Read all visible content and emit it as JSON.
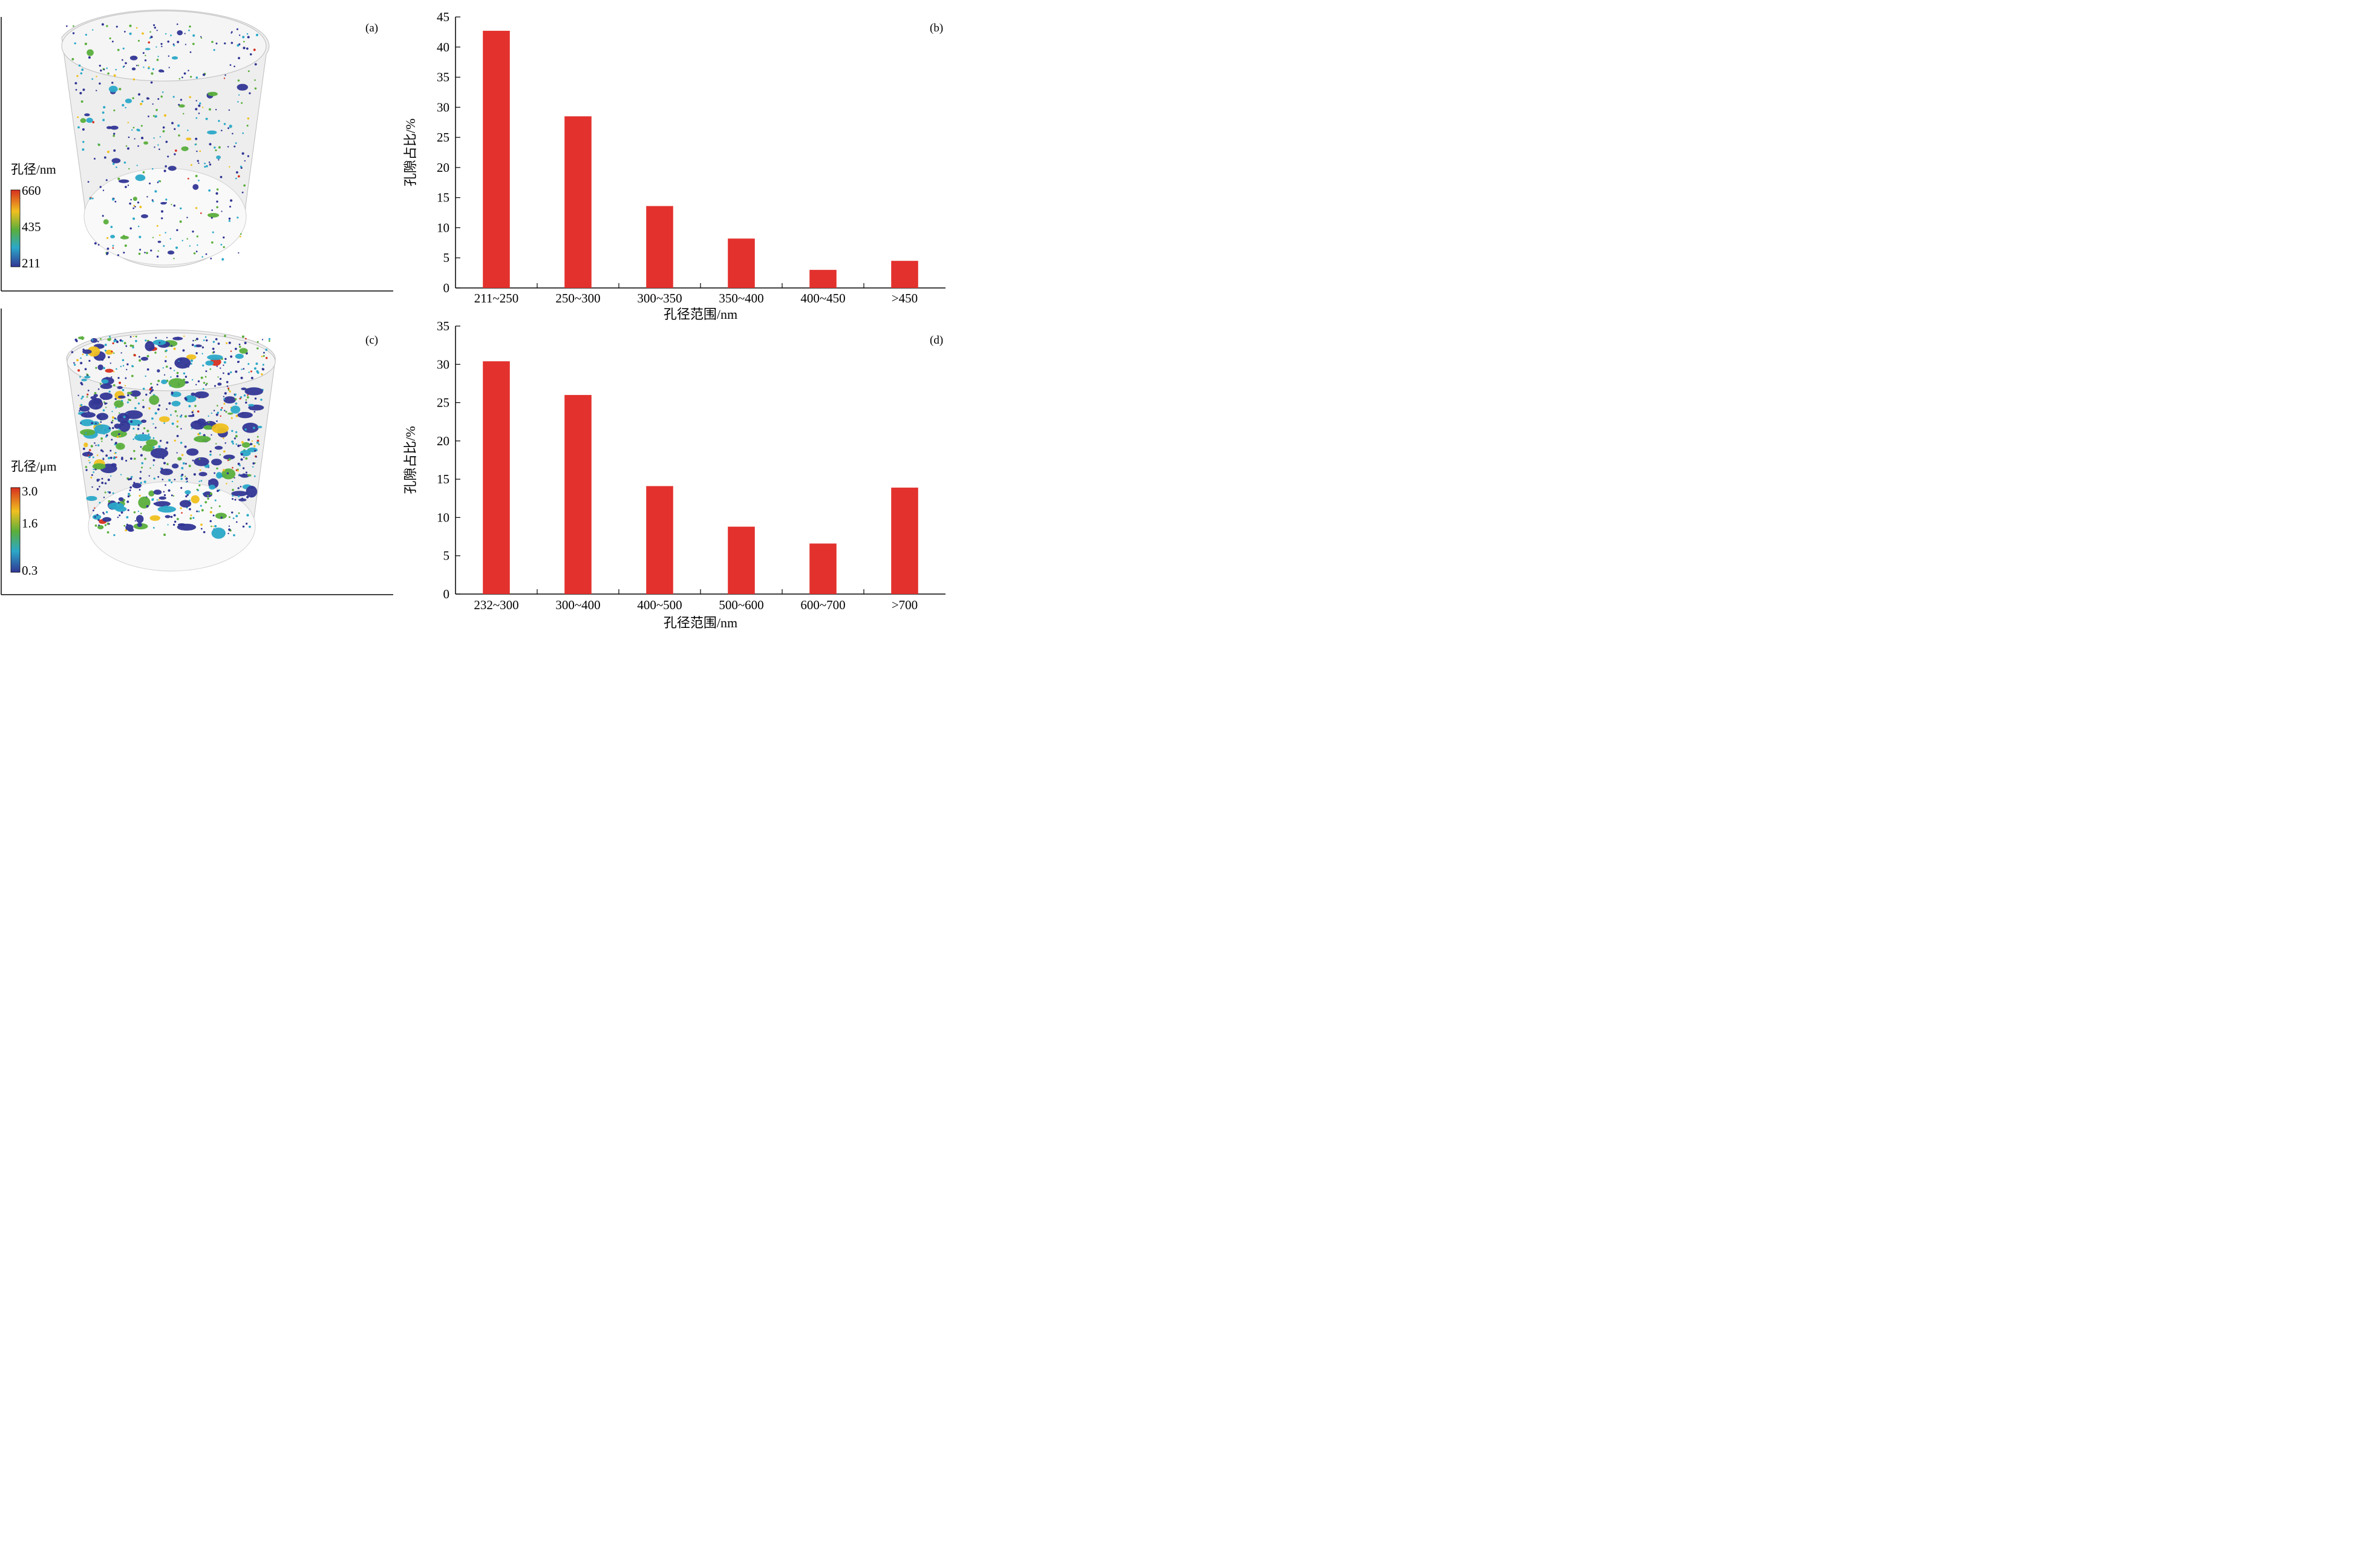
{
  "panels": {
    "a": {
      "label": "(a)",
      "colorbar_title": "孔径/nm",
      "colorbar_ticks": [
        "660",
        "435",
        "211"
      ],
      "colorbar_colors": [
        "#d7301f",
        "#f0c020",
        "#5aae3c",
        "#2ba8c8",
        "#313695"
      ]
    },
    "c": {
      "label": "(c)",
      "colorbar_title": "孔径/μm",
      "colorbar_ticks": [
        "3.0",
        "1.6",
        "0.3"
      ],
      "colorbar_colors": [
        "#d7301f",
        "#f0c020",
        "#5aae3c",
        "#2ba8c8",
        "#313695"
      ]
    }
  },
  "chart_data": [
    {
      "id": "b",
      "type": "bar",
      "panel_label": "(b)",
      "categories": [
        "211~250",
        "250~300",
        "300~350",
        "350~400",
        "400~450",
        ">450"
      ],
      "values": [
        42.7,
        28.5,
        13.6,
        8.2,
        3.0,
        4.5
      ],
      "xlabel": "孔径范围/nm",
      "ylabel": "孔隙占比/%",
      "ylim": [
        0,
        45
      ],
      "yticks": [
        0,
        5,
        10,
        15,
        20,
        25,
        30,
        35,
        40,
        45
      ],
      "bar_color": "#e3312d",
      "grid": false
    },
    {
      "id": "d",
      "type": "bar",
      "panel_label": "(d)",
      "categories": [
        "232~300",
        "300~400",
        "400~500",
        "500~600",
        "600~700",
        ">700"
      ],
      "values": [
        30.4,
        26.0,
        14.1,
        8.8,
        6.6,
        13.9
      ],
      "xlabel": "孔径范围/nm",
      "ylabel": "孔隙占比/%",
      "ylim": [
        0,
        35
      ],
      "yticks": [
        0,
        5,
        10,
        15,
        20,
        25,
        30,
        35
      ],
      "bar_color": "#e3312d",
      "grid": false
    }
  ]
}
